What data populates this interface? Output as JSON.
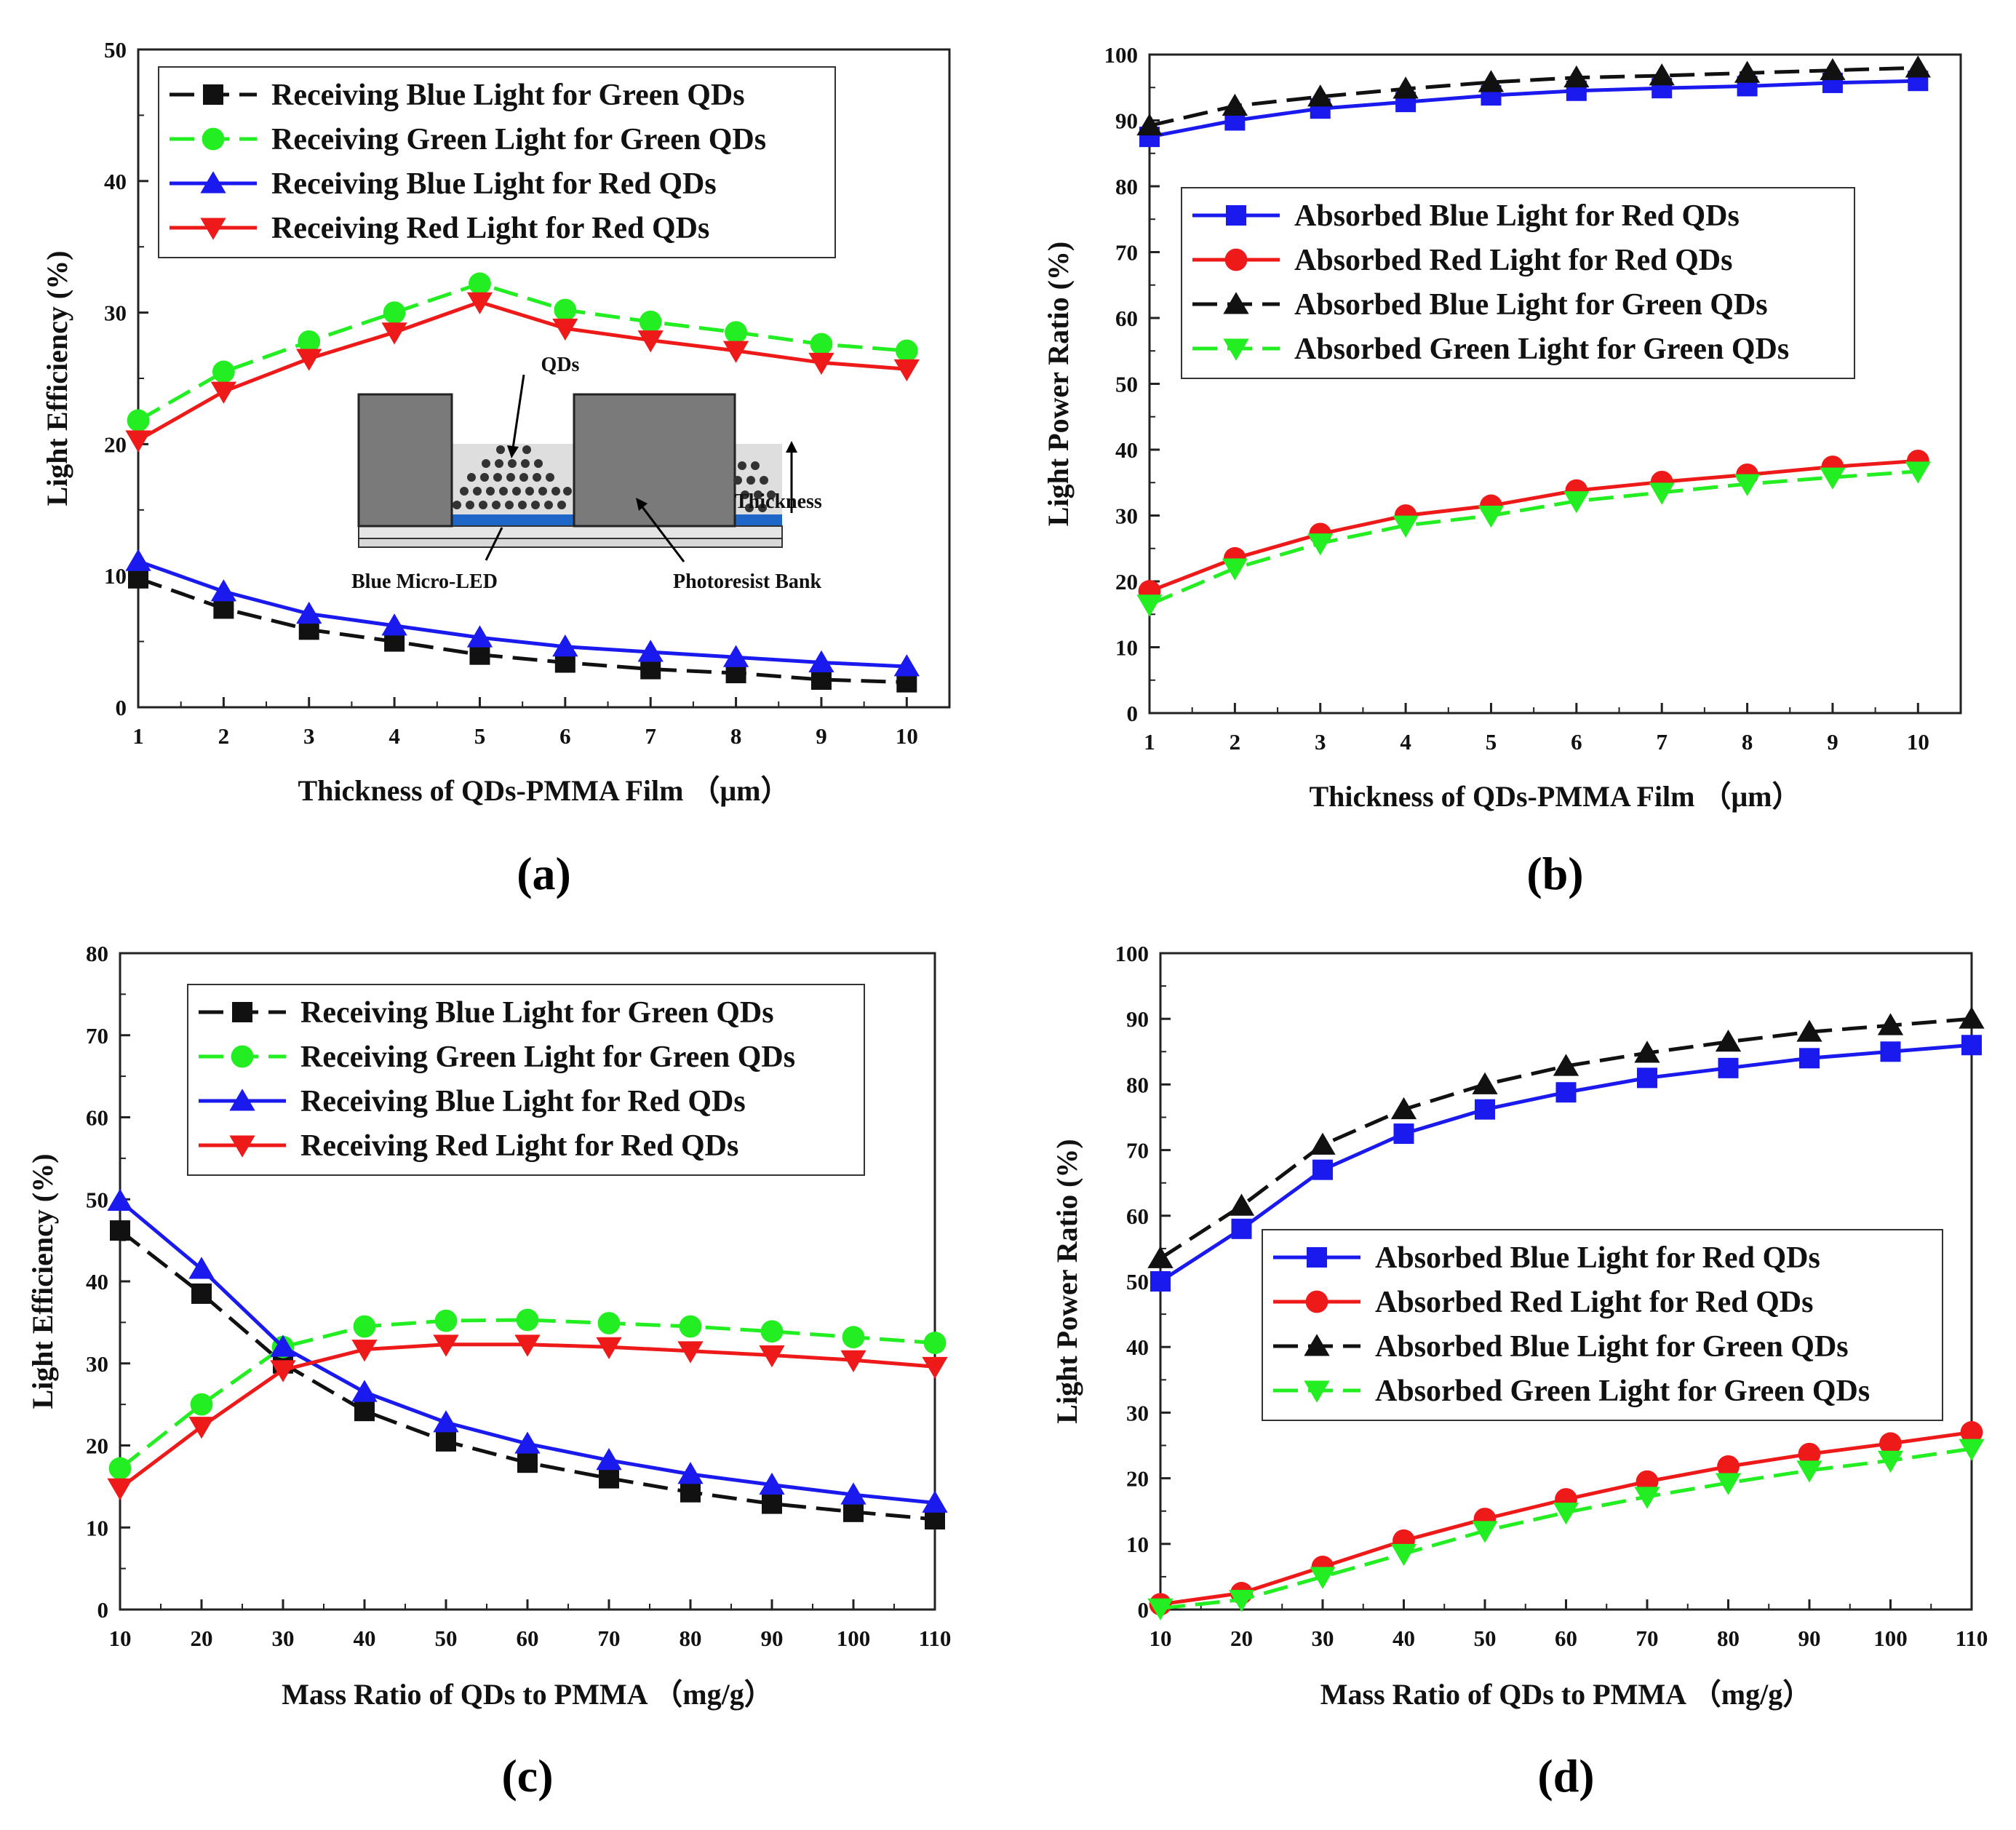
{
  "colors": {
    "black": "#111111",
    "green": "#22ee22",
    "blue": "#1a1aee",
    "red": "#ee1a1a"
  },
  "chart_data": [
    {
      "id": "a",
      "type": "line",
      "panel_label": "(a)",
      "xlabel": "Thickness of QDs-PMMA Film （μm）",
      "ylabel": "Light Efficiency (%)",
      "xlim": [
        1,
        10.5
      ],
      "ylim": [
        0,
        50
      ],
      "xticks": [
        1,
        2,
        3,
        4,
        5,
        6,
        7,
        8,
        9,
        10
      ],
      "yticks": [
        0,
        10,
        20,
        30,
        40,
        50
      ],
      "legend_position": "top-left",
      "x": [
        1,
        2,
        3,
        4,
        5,
        6,
        7,
        8,
        9,
        10
      ],
      "series": [
        {
          "name": "Receiving Blue Light for Green QDs",
          "color": "black",
          "marker": "square",
          "dash": "long",
          "values": [
            9.8,
            7.5,
            5.9,
            5.0,
            4.0,
            3.4,
            2.9,
            2.6,
            2.1,
            1.9
          ]
        },
        {
          "name": "Receiving Green Light for Green QDs",
          "color": "green",
          "marker": "circle",
          "dash": "long",
          "values": [
            21.8,
            25.5,
            27.8,
            30.0,
            32.2,
            30.2,
            29.3,
            28.5,
            27.6,
            27.1
          ]
        },
        {
          "name": "Receiving Blue Light for Red QDs",
          "color": "blue",
          "marker": "triangle-up",
          "dash": "solid",
          "values": [
            11.1,
            8.8,
            7.1,
            6.2,
            5.3,
            4.6,
            4.2,
            3.8,
            3.4,
            3.1
          ]
        },
        {
          "name": "Receiving Red Light for Red  QDs",
          "color": "red",
          "marker": "triangle-down",
          "dash": "solid",
          "values": [
            20.3,
            24.0,
            26.5,
            28.5,
            30.8,
            28.8,
            27.9,
            27.1,
            26.2,
            25.7
          ]
        }
      ],
      "inset": {
        "labels": {
          "qds": "QDs",
          "thickness": "Thickness",
          "led": "Blue Micro-LED",
          "bank": "Photoresist Bank"
        }
      }
    },
    {
      "id": "b",
      "type": "line",
      "panel_label": "(b)",
      "xlabel": "Thickness of QDs-PMMA Film （μm）",
      "ylabel": "Light Power Ratio (%)",
      "xlim": [
        1,
        10.5
      ],
      "ylim": [
        0,
        100
      ],
      "xticks": [
        1,
        2,
        3,
        4,
        5,
        6,
        7,
        8,
        9,
        10
      ],
      "yticks": [
        0,
        10,
        20,
        30,
        40,
        50,
        60,
        70,
        80,
        90,
        100
      ],
      "legend_position": "upper-left",
      "x": [
        1,
        2,
        3,
        4,
        5,
        6,
        7,
        8,
        9,
        10
      ],
      "series": [
        {
          "name": "Absorbed Blue Light for Red QDs",
          "color": "blue",
          "marker": "square",
          "dash": "solid",
          "values": [
            87.5,
            90.0,
            91.8,
            92.8,
            93.8,
            94.5,
            94.9,
            95.2,
            95.7,
            96.0
          ]
        },
        {
          "name": "Absorbed Red Light for Red QDs",
          "color": "red",
          "marker": "circle",
          "dash": "solid",
          "values": [
            18.5,
            23.5,
            27.2,
            30.0,
            31.5,
            33.8,
            35.1,
            36.2,
            37.4,
            38.3
          ]
        },
        {
          "name": "Absorbed Blue Light for Green QDs",
          "color": "black",
          "marker": "triangle-up",
          "dash": "long",
          "values": [
            89.2,
            92.2,
            93.6,
            94.8,
            95.8,
            96.5,
            96.8,
            97.2,
            97.6,
            98.0
          ]
        },
        {
          "name": "Absorbed Green Light for Green QDs",
          "color": "green",
          "marker": "triangle-down",
          "dash": "long",
          "values": [
            16.5,
            22.0,
            25.8,
            28.5,
            30.0,
            32.2,
            33.5,
            34.8,
            35.8,
            36.7
          ]
        }
      ]
    },
    {
      "id": "c",
      "type": "line",
      "panel_label": "(c)",
      "xlabel": "Mass Ratio of QDs to PMMA （mg/g）",
      "ylabel": "Light Efficiency (%)",
      "xlim": [
        10,
        110
      ],
      "ylim": [
        0,
        80
      ],
      "xticks": [
        10,
        20,
        30,
        40,
        50,
        60,
        70,
        80,
        90,
        100,
        110
      ],
      "yticks": [
        0,
        10,
        20,
        30,
        40,
        50,
        60,
        70,
        80
      ],
      "legend_position": "top-center",
      "x": [
        10,
        20,
        30,
        40,
        50,
        60,
        70,
        80,
        90,
        100,
        110
      ],
      "series": [
        {
          "name": "Receiving Blue Light for Green QDs",
          "color": "black",
          "marker": "square",
          "dash": "long",
          "values": [
            46.2,
            38.5,
            30.0,
            24.2,
            20.5,
            17.9,
            16.0,
            14.3,
            12.9,
            11.9,
            11.0
          ]
        },
        {
          "name": "Receiving Green Light for Green QDs",
          "color": "green",
          "marker": "circle",
          "dash": "long",
          "values": [
            17.2,
            25.0,
            32.0,
            34.5,
            35.2,
            35.3,
            34.9,
            34.5,
            33.9,
            33.2,
            32.5
          ]
        },
        {
          "name": "Receiving Blue Light for Red QDs",
          "color": "blue",
          "marker": "triangle-up",
          "dash": "solid",
          "values": [
            49.8,
            41.5,
            32.0,
            26.5,
            22.8,
            20.2,
            18.2,
            16.5,
            15.2,
            14.0,
            13.0
          ]
        },
        {
          "name": "Receiving Red Light for Red QDs",
          "color": "red",
          "marker": "triangle-down",
          "dash": "solid",
          "values": [
            14.8,
            22.3,
            29.2,
            31.7,
            32.3,
            32.3,
            32.0,
            31.5,
            31.0,
            30.4,
            29.6
          ]
        }
      ]
    },
    {
      "id": "d",
      "type": "line",
      "panel_label": "(d)",
      "xlabel": "Mass Ratio of QDs to PMMA （mg/g）",
      "ylabel": "Light Power Ratio (%)",
      "xlim": [
        10,
        110
      ],
      "ylim": [
        0,
        100
      ],
      "xticks": [
        10,
        20,
        30,
        40,
        50,
        60,
        70,
        80,
        90,
        100,
        110
      ],
      "yticks": [
        0,
        10,
        20,
        30,
        40,
        50,
        60,
        70,
        80,
        90,
        100
      ],
      "legend_position": "middle-right",
      "x": [
        10,
        20,
        30,
        40,
        50,
        60,
        70,
        80,
        90,
        100,
        110
      ],
      "series": [
        {
          "name": "Absorbed Blue Light for Red QDs",
          "color": "blue",
          "marker": "square",
          "dash": "solid",
          "values": [
            50.0,
            58.0,
            67.0,
            72.5,
            76.2,
            78.8,
            81.0,
            82.5,
            84.0,
            85.0,
            86.0
          ]
        },
        {
          "name": "Absorbed Red Light for Red QDs",
          "color": "red",
          "marker": "circle",
          "dash": "solid",
          "values": [
            0.8,
            2.5,
            6.5,
            10.5,
            13.8,
            16.8,
            19.5,
            21.8,
            23.7,
            25.3,
            27.0
          ]
        },
        {
          "name": "Absorbed Blue Light for Green QDs",
          "color": "black",
          "marker": "triangle-up",
          "dash": "long",
          "values": [
            53.5,
            61.5,
            70.8,
            76.2,
            80.0,
            82.8,
            84.8,
            86.5,
            88.0,
            89.0,
            90.0
          ]
        },
        {
          "name": "Absorbed Green Light for Green  QDs",
          "color": "green",
          "marker": "triangle-down",
          "dash": "long",
          "values": [
            0.2,
            1.5,
            5.0,
            8.5,
            12.0,
            14.8,
            17.2,
            19.3,
            21.2,
            22.7,
            24.5
          ]
        }
      ]
    }
  ]
}
